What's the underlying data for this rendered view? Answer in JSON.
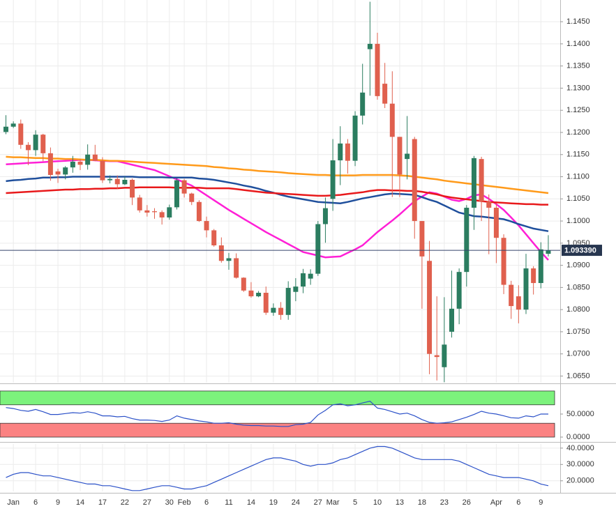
{
  "chart_data": [
    {
      "type": "candlestick",
      "ylim": [
        1.0635,
        1.1499
      ],
      "yticks": [
        {
          "value": 1.065,
          "label": "1.0650"
        },
        {
          "value": 1.07,
          "label": "1.0700"
        },
        {
          "value": 1.075,
          "label": "1.0750"
        },
        {
          "value": 1.08,
          "label": "1.0800"
        },
        {
          "value": 1.085,
          "label": "1.0850"
        },
        {
          "value": 1.09,
          "label": "1.0900"
        },
        {
          "value": 1.095,
          "label": "1.0950"
        },
        {
          "value": 1.1,
          "label": "1.1000"
        },
        {
          "value": 1.105,
          "label": "1.1050"
        },
        {
          "value": 1.11,
          "label": "1.1100"
        },
        {
          "value": 1.115,
          "label": "1.1150"
        },
        {
          "value": 1.12,
          "label": "1.1200"
        },
        {
          "value": 1.125,
          "label": "1.1250"
        },
        {
          "value": 1.13,
          "label": "1.1300"
        },
        {
          "value": 1.135,
          "label": "1.1350"
        },
        {
          "value": 1.14,
          "label": "1.1400"
        },
        {
          "value": 1.145,
          "label": "1.1450"
        }
      ],
      "grid": true,
      "series": [
        {
          "up_color": "#2b7d60",
          "down_color": "#e0604e",
          "open": [
            1.1201,
            1.1213,
            1.122,
            1.1172,
            1.116,
            1.1195,
            1.1153,
            1.1112,
            1.1105,
            1.1121,
            1.1134,
            1.1127,
            1.115,
            1.1136,
            1.1092,
            1.1095,
            1.1083,
            1.1093,
            1.1053,
            1.1024,
            1.1022,
            1.102,
            1.1008,
            1.1031,
            1.1092,
            1.1062,
            1.1043,
            1.1,
            1.0979,
            1.0945,
            1.091,
            1.0916,
            1.0872,
            1.0843,
            1.083,
            1.0838,
            1.0793,
            1.0804,
            1.0788,
            1.084,
            1.0852,
            1.087,
            1.0881,
            1.0993,
            1.105,
            1.1137,
            1.1175,
            1.1136,
            1.1238,
            1.1388,
            1.14,
            1.131,
            1.1265,
            1.119,
            1.114,
            1.1185,
            1.1,
            1.091,
            1.0697,
            1.067,
            1.075,
            1.0802,
            1.0885,
            1.103,
            1.114,
            1.1044,
            1.103,
            1.0962,
            1.0856,
            1.083,
            1.08,
            1.0893,
            1.086,
            1.0926
          ],
          "high": [
            1.1239,
            1.1225,
            1.1229,
            1.1178,
            1.1205,
            1.1197,
            1.1166,
            1.1118,
            1.1124,
            1.1147,
            1.114,
            1.1173,
            1.1172,
            1.1144,
            1.1103,
            1.1103,
            1.11,
            1.1096,
            1.1059,
            1.1036,
            1.1029,
            1.1024,
            1.1037,
            1.1096,
            1.1095,
            1.1064,
            1.1047,
            1.101,
            1.0982,
            1.0963,
            1.0928,
            1.0927,
            1.0873,
            1.0862,
            1.0842,
            1.0852,
            1.0814,
            1.0817,
            1.0864,
            1.0871,
            1.0892,
            1.0891,
            1.1,
            1.1053,
            1.1185,
            1.1214,
            1.1185,
            1.1248,
            1.1355,
            1.1495,
            1.1425,
            1.1357,
            1.1338,
            1.119,
            1.1237,
            1.119,
            1.1,
            1.0955,
            1.083,
            1.0828,
            1.0888,
            1.0893,
            1.1036,
            1.1147,
            1.1145,
            1.106,
            1.104,
            1.097,
            1.0865,
            1.0855,
            1.0926,
            1.0898,
            1.0952,
            1.0968
          ],
          "low": [
            1.1196,
            1.121,
            1.1163,
            1.1126,
            1.1147,
            1.1135,
            1.1091,
            1.1086,
            1.1094,
            1.1109,
            1.1115,
            1.1116,
            1.1135,
            1.1086,
            1.1085,
            1.1072,
            1.1081,
            1.1036,
            1.1019,
            1.101,
            1.1005,
            1.0992,
            1.1003,
            1.1026,
            1.1053,
            1.1036,
            1.0998,
            1.0963,
            1.0942,
            1.0906,
            1.089,
            1.087,
            1.084,
            1.0827,
            1.0828,
            1.0788,
            1.0786,
            1.0777,
            1.0777,
            1.0819,
            1.0837,
            1.0856,
            1.0876,
            1.0951,
            1.1023,
            1.1081,
            1.1107,
            1.1124,
            1.1218,
            1.1283,
            1.1274,
            1.1255,
            1.1054,
            1.1054,
            1.1094,
            1.096,
            1.0802,
            1.0654,
            1.064,
            1.0636,
            1.0737,
            1.0767,
            1.0852,
            1.098,
            1.1,
            1.0925,
            1.0905,
            1.0835,
            1.0779,
            1.0769,
            1.079,
            1.0834,
            1.0848,
            1.092
          ],
          "close": [
            1.1213,
            1.122,
            1.1172,
            1.116,
            1.1195,
            1.1153,
            1.1104,
            1.1105,
            1.1121,
            1.1134,
            1.1127,
            1.115,
            1.1136,
            1.1092,
            1.1095,
            1.1083,
            1.1093,
            1.1053,
            1.1024,
            1.1019,
            1.102,
            1.1008,
            1.1031,
            1.1092,
            1.1062,
            1.1043,
            1.1,
            1.0979,
            1.0945,
            1.091,
            1.0916,
            1.0872,
            1.0843,
            1.083,
            1.0838,
            1.0793,
            1.0804,
            1.0788,
            1.0849,
            1.0852,
            1.0882,
            1.0881,
            1.0993,
            1.1029,
            1.1137,
            1.1175,
            1.1136,
            1.1238,
            1.129,
            1.14,
            1.1282,
            1.1265,
            1.119,
            1.1105,
            1.1152,
            1.1,
            1.092,
            1.07,
            1.0693,
            1.0721,
            1.0802,
            1.0885,
            1.103,
            1.1142,
            1.1044,
            1.103,
            1.0962,
            1.0856,
            1.0808,
            1.08,
            1.0893,
            1.086,
            1.0936,
            1.0934
          ]
        }
      ],
      "lines": [
        {
          "color": "#ff1fd6",
          "values": [
            1.1128,
            1.1129,
            1.113,
            1.1131,
            1.1132,
            1.1133,
            1.1134,
            1.1135,
            1.1136,
            1.1137,
            1.1138,
            1.1138,
            1.1137,
            1.1136,
            1.1135,
            1.1135,
            1.1131,
            1.1127,
            1.1123,
            1.1119,
            1.1115,
            1.1108,
            1.1101,
            1.1094,
            1.1087,
            1.108,
            1.1069,
            1.1058,
            1.1047,
            1.1036,
            1.1025,
            1.1015,
            1.1005,
            1.0995,
            1.0985,
            1.0975,
            1.0966,
            1.0957,
            1.0948,
            1.0939,
            1.093,
            1.0926,
            1.0922,
            1.0918,
            1.0919,
            1.092,
            1.0928,
            1.0936,
            1.0945,
            1.096,
            1.0975,
            1.0988,
            1.1001,
            1.1015,
            1.103,
            1.1045,
            1.1055,
            1.1065,
            1.1062,
            1.1055,
            1.1048,
            1.1045,
            1.105,
            1.1058,
            1.106,
            1.105,
            1.1038,
            1.1025,
            1.1008,
            1.099,
            1.097,
            1.095,
            1.093,
            1.0912
          ]
        },
        {
          "color": "#1f4f9c",
          "values": [
            1.109,
            1.1092,
            1.1093,
            1.1095,
            1.1096,
            1.1098,
            1.1098,
            1.1099,
            1.1099,
            1.11,
            1.11,
            1.11,
            1.11,
            1.11,
            1.11,
            1.11,
            1.11,
            1.11,
            1.1099,
            1.1099,
            1.1099,
            1.1099,
            1.1098,
            1.1098,
            1.1098,
            1.1098,
            1.1096,
            1.1095,
            1.1093,
            1.109,
            1.1087,
            1.1084,
            1.108,
            1.1077,
            1.1073,
            1.1068,
            1.1064,
            1.1059,
            1.1055,
            1.1052,
            1.1049,
            1.1046,
            1.1043,
            1.1042,
            1.1041,
            1.104,
            1.1043,
            1.1047,
            1.1051,
            1.1054,
            1.1057,
            1.106,
            1.1062,
            1.1061,
            1.106,
            1.1059,
            1.1054,
            1.1048,
            1.1043,
            1.1035,
            1.1027,
            1.1019,
            1.1015,
            1.1011,
            1.101,
            1.1008,
            1.1006,
            1.1004,
            1.0999,
            1.0993,
            1.0988,
            1.0983,
            1.098,
            1.0977
          ]
        },
        {
          "color": "#e8191b",
          "values": [
            1.1063,
            1.1064,
            1.1065,
            1.1066,
            1.1067,
            1.1068,
            1.1069,
            1.107,
            1.1071,
            1.1071,
            1.1072,
            1.1072,
            1.1073,
            1.1073,
            1.1074,
            1.1074,
            1.1075,
            1.1075,
            1.1076,
            1.1076,
            1.1076,
            1.1076,
            1.1076,
            1.1075,
            1.1075,
            1.1075,
            1.1075,
            1.1074,
            1.1074,
            1.1074,
            1.1074,
            1.1072,
            1.107,
            1.1068,
            1.1066,
            1.1064,
            1.1063,
            1.1062,
            1.1061,
            1.106,
            1.1059,
            1.1058,
            1.1057,
            1.1057,
            1.1058,
            1.1059,
            1.1061,
            1.1063,
            1.1065,
            1.1068,
            1.107,
            1.107,
            1.1069,
            1.1069,
            1.1068,
            1.1068,
            1.1066,
            1.1063,
            1.106,
            1.1056,
            1.1053,
            1.1051,
            1.1049,
            1.1047,
            1.1045,
            1.1043,
            1.1042,
            1.1041,
            1.104,
            1.1039,
            1.1038,
            1.1038,
            1.1037,
            1.1037
          ]
        },
        {
          "color": "#ff9a1a",
          "values": [
            1.1145,
            1.1144,
            1.1144,
            1.1143,
            1.1142,
            1.1142,
            1.1141,
            1.1141,
            1.114,
            1.114,
            1.1139,
            1.1138,
            1.1138,
            1.1137,
            1.1136,
            1.1136,
            1.1135,
            1.1134,
            1.1133,
            1.1132,
            1.1131,
            1.113,
            1.1129,
            1.1128,
            1.1127,
            1.1126,
            1.1125,
            1.1124,
            1.1122,
            1.1121,
            1.1119,
            1.1118,
            1.1116,
            1.1115,
            1.1113,
            1.1112,
            1.1111,
            1.111,
            1.1108,
            1.1107,
            1.1106,
            1.1105,
            1.1104,
            1.1104,
            1.1103,
            1.1103,
            1.1103,
            1.1103,
            1.1104,
            1.1104,
            1.1104,
            1.1104,
            1.1104,
            1.1103,
            1.1102,
            1.11,
            1.1098,
            1.1096,
            1.1094,
            1.1091,
            1.1089,
            1.1087,
            1.1085,
            1.1083,
            1.1081,
            1.1079,
            1.1077,
            1.1075,
            1.1073,
            1.1071,
            1.1069,
            1.1067,
            1.1065,
            1.1063
          ]
        }
      ],
      "last_price": {
        "value": 1.09339,
        "label": "1.093390"
      }
    },
    {
      "type": "line",
      "ylim": [
        -7.5,
        112
      ],
      "yticks": [
        {
          "value": 0,
          "label": "0.0000"
        },
        {
          "value": 50,
          "label": "50.0000"
        }
      ],
      "bands": [
        {
          "from": 70,
          "to": 100,
          "color": "#7cf27c"
        },
        {
          "from": 0,
          "to": 30,
          "color": "#fb8282"
        }
      ],
      "series": [
        {
          "color": "#2a50c8",
          "values": [
            64,
            62,
            58,
            56,
            60,
            55,
            49,
            49,
            51,
            53,
            52,
            55,
            52,
            46,
            46,
            44,
            45,
            40,
            37,
            37,
            36,
            34,
            37,
            46,
            41,
            38,
            35,
            33,
            30,
            30,
            31,
            28,
            26,
            25,
            25,
            24,
            24,
            23,
            23,
            27,
            28,
            32,
            48,
            58,
            70,
            72,
            68,
            70,
            74,
            78,
            63,
            60,
            55,
            50,
            52,
            46,
            38,
            32,
            30,
            31,
            33,
            38,
            43,
            49,
            56,
            52,
            50,
            46,
            42,
            41,
            46,
            44,
            50,
            50
          ]
        }
      ]
    },
    {
      "type": "line",
      "ylim": [
        13.5,
        42.5
      ],
      "yticks": [
        {
          "value": 20,
          "label": "20.0000"
        },
        {
          "value": 30,
          "label": "30.0000"
        },
        {
          "value": 40,
          "label": "40.0000"
        }
      ],
      "grid": true,
      "series": [
        {
          "color": "#2a50c8",
          "values": [
            22,
            24,
            25,
            25,
            24,
            23,
            23,
            22,
            21,
            20,
            19,
            18,
            18,
            17,
            17,
            16,
            15,
            14,
            14,
            15,
            16,
            17,
            17,
            16,
            15,
            15,
            16,
            17,
            19,
            21,
            23,
            25,
            27,
            29,
            31,
            33,
            34,
            34,
            33,
            32,
            30,
            29,
            30,
            30,
            31,
            33,
            34,
            36,
            38,
            40,
            41,
            41,
            40,
            38,
            36,
            34,
            33,
            33,
            33,
            33,
            33,
            32,
            30,
            28,
            26,
            24,
            23,
            22,
            22,
            22,
            21,
            20,
            18,
            17
          ]
        }
      ],
      "categories": [
        null,
        "Jan",
        null,
        null,
        "6",
        null,
        null,
        "9",
        null,
        null,
        "14",
        null,
        null,
        "17",
        null,
        null,
        "22",
        null,
        null,
        "27",
        null,
        null,
        "30",
        null,
        "Feb",
        null,
        null,
        "6",
        null,
        null,
        "11",
        null,
        null,
        "14",
        null,
        null,
        "19",
        null,
        null,
        "24",
        null,
        null,
        "27",
        null,
        "Mar",
        null,
        null,
        "5",
        null,
        null,
        "10",
        null,
        null,
        "13",
        null,
        null,
        "18",
        null,
        null,
        "23",
        null,
        null,
        "26",
        null,
        null,
        null,
        "Apr",
        null,
        null,
        "6",
        null,
        null,
        "9",
        null
      ]
    }
  ]
}
